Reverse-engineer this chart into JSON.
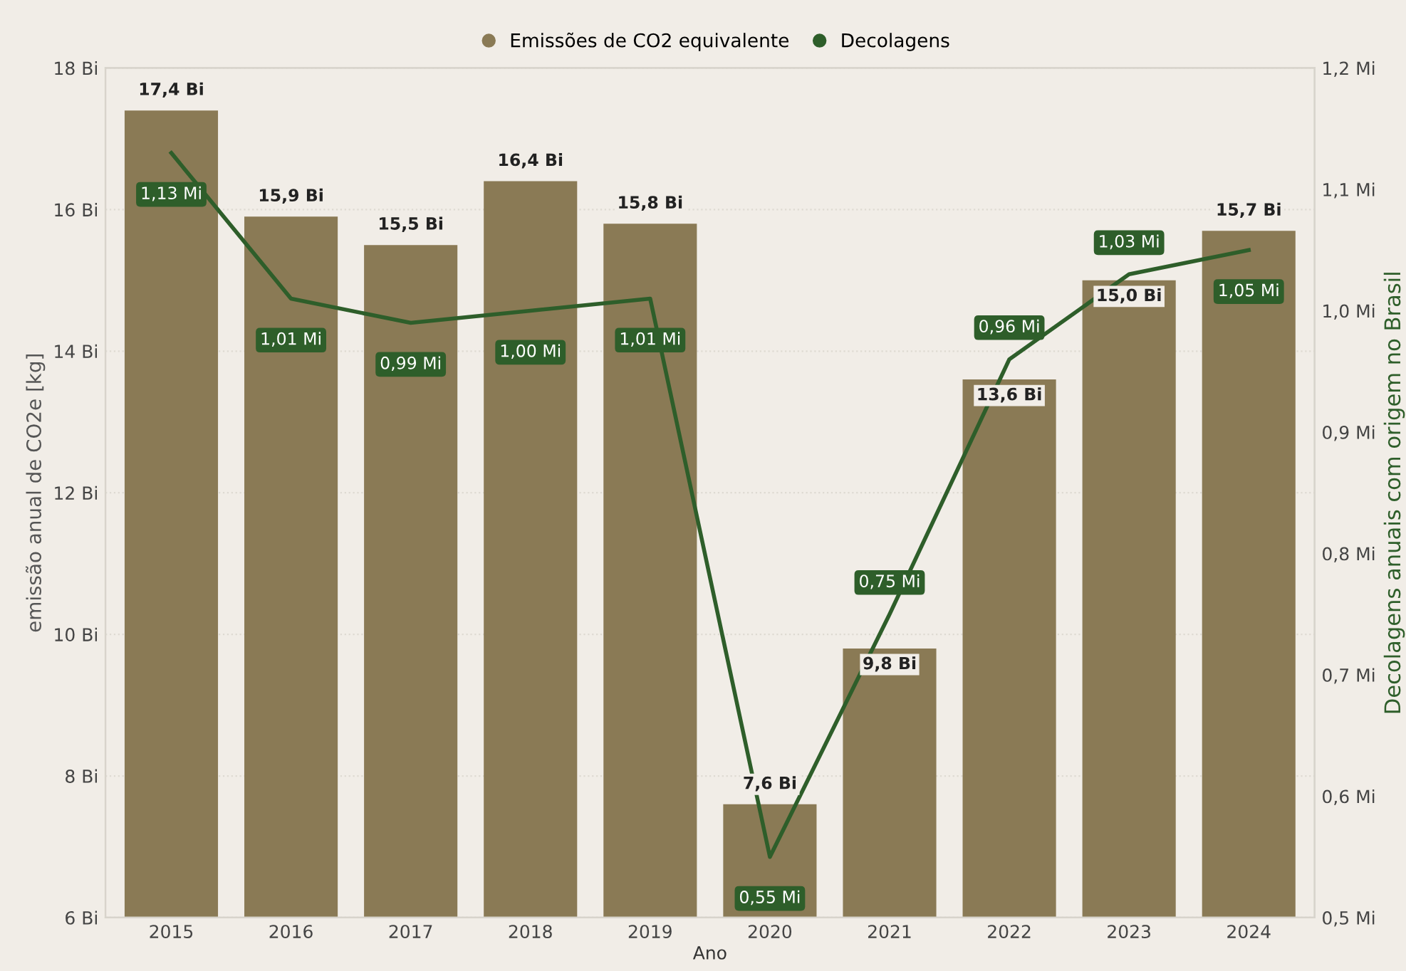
{
  "chart_data": {
    "type": "bar",
    "xlabel": "Ano",
    "ylabel": "emissão anual de CO2e [kg]",
    "y2label": "Decolagens anuais com origem no Brasil",
    "categories": [
      "2015",
      "2016",
      "2017",
      "2018",
      "2019",
      "2020",
      "2021",
      "2022",
      "2023",
      "2024"
    ],
    "series": [
      {
        "name": "Emissões de CO2 equivalente",
        "type": "bar",
        "color": "#8a7a55",
        "values": [
          17.4,
          15.9,
          15.5,
          16.4,
          15.8,
          7.6,
          9.8,
          13.6,
          15.0,
          15.7
        ],
        "value_labels": [
          "17,4 Bi",
          "15,9 Bi",
          "15,5 Bi",
          "16,4 Bi",
          "15,8 Bi",
          "7,6 Bi",
          "9,8 Bi",
          "13,6 Bi",
          "15,0 Bi",
          "15,7 Bi"
        ]
      },
      {
        "name": "Decolagens",
        "type": "line",
        "axis": "y2",
        "color": "#2e5e2a",
        "values": [
          1.13,
          1.01,
          0.99,
          1.0,
          1.01,
          0.55,
          0.75,
          0.96,
          1.03,
          1.05
        ],
        "value_labels": [
          "1,13 Mi",
          "1,01 Mi",
          "0,99 Mi",
          "1,00 Mi",
          "1,01 Mi",
          "0,55 Mi",
          "0,75 Mi",
          "0,96 Mi",
          "1,03 Mi",
          "1,05 Mi"
        ]
      }
    ],
    "ylim": [
      6,
      18
    ],
    "yticks": [
      {
        "value": 6,
        "label": "6 Bi"
      },
      {
        "value": 8,
        "label": "8 Bi"
      },
      {
        "value": 10,
        "label": "10 Bi"
      },
      {
        "value": 12,
        "label": "12 Bi"
      },
      {
        "value": 14,
        "label": "14 Bi"
      },
      {
        "value": 16,
        "label": "16 Bi"
      },
      {
        "value": 18,
        "label": "18 Bi"
      }
    ],
    "y2lim": [
      0.5,
      1.2
    ],
    "y2ticks": [
      {
        "value": 0.5,
        "label": "0,5 Mi"
      },
      {
        "value": 0.6,
        "label": "0,6 Mi"
      },
      {
        "value": 0.7,
        "label": "0,7 Mi"
      },
      {
        "value": 0.8,
        "label": "0,8 Mi"
      },
      {
        "value": 0.9,
        "label": "0,9 Mi"
      },
      {
        "value": 1.0,
        "label": "1,0 Mi"
      },
      {
        "value": 1.1,
        "label": "1,1 Mi"
      },
      {
        "value": 1.2,
        "label": "1,2 Mi"
      }
    ],
    "grid": "y",
    "legend": "top",
    "marker": "none",
    "line_style": "solid"
  }
}
